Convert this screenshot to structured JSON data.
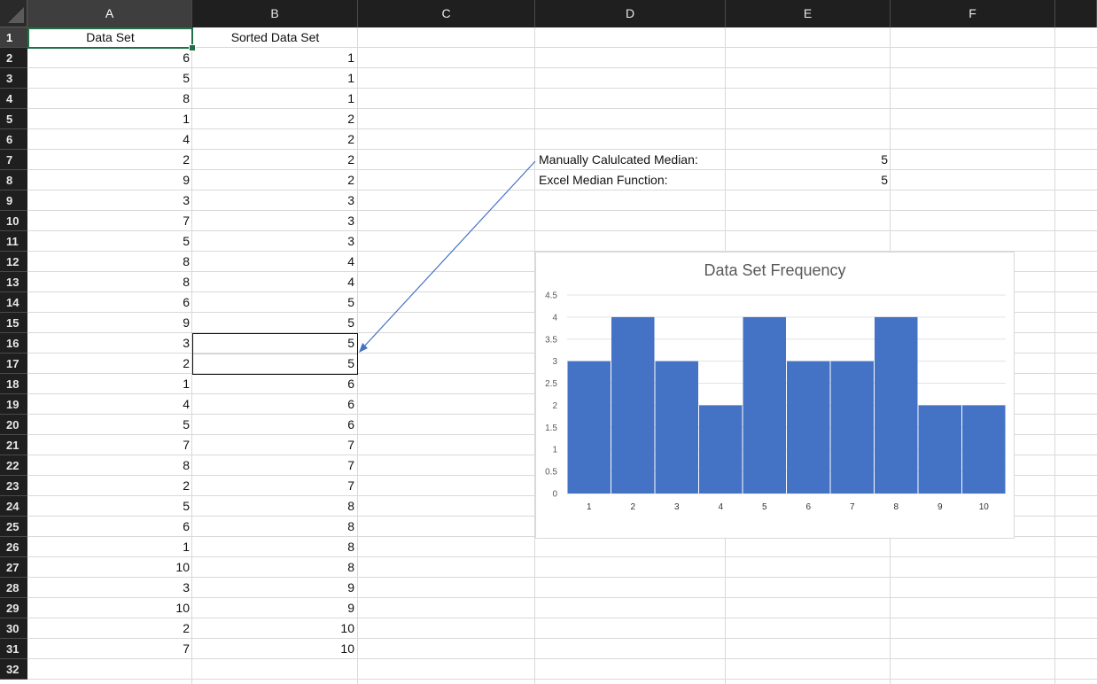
{
  "columns": [
    {
      "label": "A",
      "selected": true
    },
    {
      "label": "B",
      "selected": false
    },
    {
      "label": "C",
      "selected": false
    },
    {
      "label": "D",
      "selected": false
    },
    {
      "label": "E",
      "selected": false
    },
    {
      "label": "F",
      "selected": false
    }
  ],
  "rows": [
    "1",
    "2",
    "3",
    "4",
    "5",
    "6",
    "7",
    "8",
    "9",
    "10",
    "11",
    "12",
    "13",
    "14",
    "15",
    "16",
    "17",
    "18",
    "19",
    "20",
    "21",
    "22",
    "23",
    "24",
    "25",
    "26",
    "27",
    "28",
    "29",
    "30",
    "31",
    "32"
  ],
  "headers": {
    "data_set": "Data Set",
    "sorted_data_set": "Sorted Data Set"
  },
  "data_set": [
    "6",
    "5",
    "8",
    "1",
    "4",
    "2",
    "9",
    "3",
    "7",
    "5",
    "8",
    "8",
    "6",
    "9",
    "3",
    "2",
    "1",
    "4",
    "5",
    "7",
    "8",
    "2",
    "5",
    "6",
    "1",
    "10",
    "3",
    "10",
    "2",
    "7"
  ],
  "sorted_data_set": [
    "1",
    "1",
    "1",
    "2",
    "2",
    "2",
    "2",
    "3",
    "3",
    "3",
    "4",
    "4",
    "5",
    "5",
    "5",
    "5",
    "6",
    "6",
    "6",
    "7",
    "7",
    "7",
    "8",
    "8",
    "8",
    "8",
    "9",
    "9",
    "10",
    "10"
  ],
  "summary": {
    "manual_label": "Manually Calulcated Median:",
    "manual_value": "5",
    "excel_label": "Excel Median Function:",
    "excel_value": "5"
  },
  "colors": {
    "bar": "#4472c4",
    "arrow": "#4472c4",
    "active_cell": "#1e7145"
  },
  "chart_data": {
    "type": "bar",
    "title": "Data Set Frequency",
    "categories": [
      "1",
      "2",
      "3",
      "4",
      "5",
      "6",
      "7",
      "8",
      "9",
      "10"
    ],
    "values": [
      3,
      4,
      3,
      2,
      4,
      3,
      3,
      4,
      2,
      2
    ],
    "y_ticks": [
      "0",
      "0.5",
      "1",
      "1.5",
      "2",
      "2.5",
      "3",
      "3.5",
      "4",
      "4.5"
    ],
    "ylim": [
      0,
      4.5
    ],
    "grid": true,
    "legend": "none"
  }
}
